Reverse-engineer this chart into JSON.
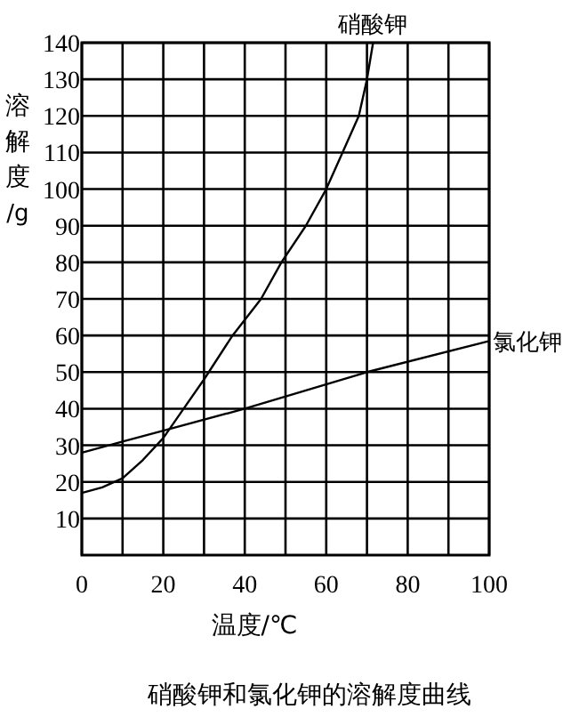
{
  "chart_data": {
    "type": "line",
    "title": "硝酸钾和氯化钾的溶解度曲线",
    "xlabel": "温度/℃",
    "ylabel": "溶解度/g",
    "xlim": [
      0,
      100
    ],
    "ylim": [
      0,
      140
    ],
    "xticks": [
      0,
      20,
      40,
      60,
      80,
      100
    ],
    "yticks": [
      10,
      20,
      30,
      40,
      50,
      60,
      70,
      80,
      90,
      100,
      110,
      120,
      130,
      140
    ],
    "grid": true,
    "marker": "none",
    "line_style": "solid",
    "series": [
      {
        "name": "硝酸钾",
        "color": "#000000",
        "x": [
          0,
          5,
          10,
          15,
          20,
          25,
          30,
          37,
          44,
          49,
          55,
          60,
          64,
          68,
          70,
          71.5
        ],
        "values": [
          17,
          18.5,
          21,
          26,
          32,
          40,
          48,
          60,
          70,
          80,
          90,
          100,
          110,
          120,
          130,
          140
        ]
      },
      {
        "name": "氯化钾",
        "color": "#000000",
        "x": [
          0,
          10,
          20,
          40,
          70,
          100
        ],
        "values": [
          28,
          31,
          34,
          40,
          50,
          58.5
        ]
      }
    ]
  }
}
